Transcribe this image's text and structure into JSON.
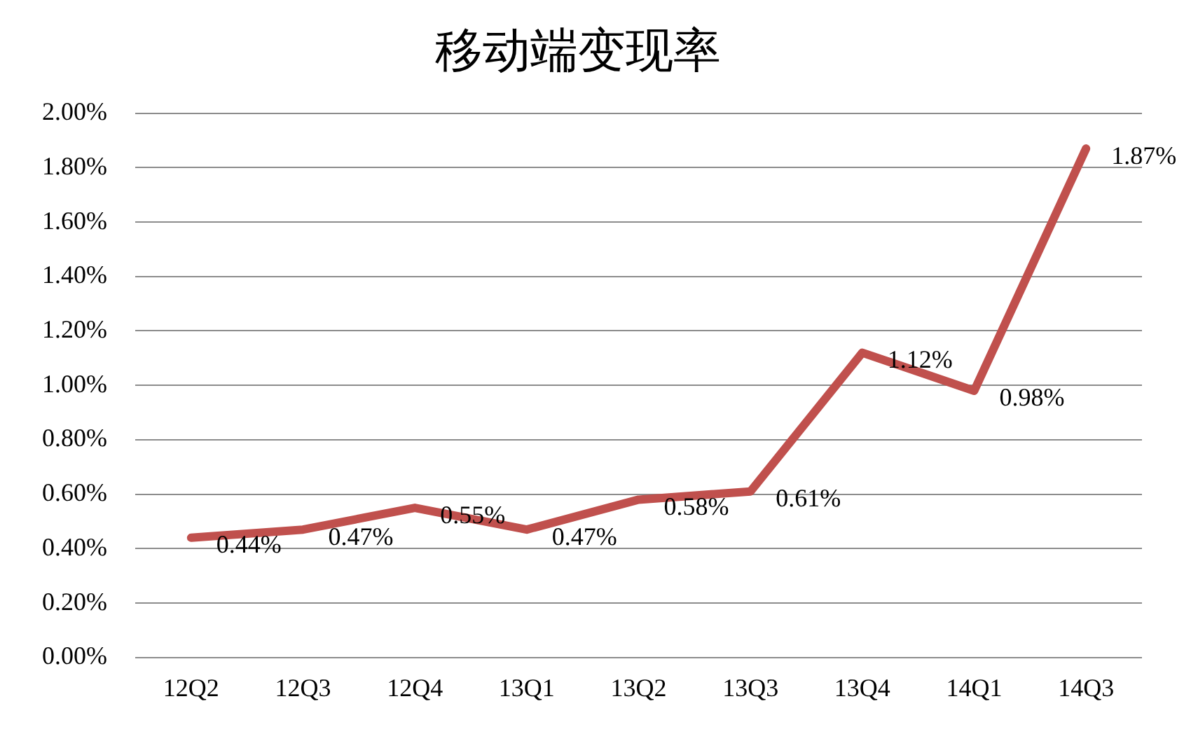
{
  "chart_data": {
    "type": "line",
    "title": "移动端变现率",
    "categories": [
      "12Q2",
      "12Q3",
      "12Q4",
      "13Q1",
      "13Q2",
      "13Q3",
      "13Q4",
      "14Q1",
      "14Q3"
    ],
    "series": [
      {
        "color": "#c0504d",
        "values": [
          0.44,
          0.47,
          0.55,
          0.47,
          0.58,
          0.61,
          1.12,
          0.98,
          1.87
        ],
        "value_labels": [
          "0.44%",
          "0.47%",
          "0.55%",
          "0.47%",
          "0.58%",
          "0.61%",
          "1.12%",
          "0.98%",
          "1.87%"
        ]
      }
    ],
    "ylim": [
      0,
      2
    ],
    "yticks": [
      {
        "value": 0,
        "label": "0.00%"
      },
      {
        "value": 0.2,
        "label": "0.20%"
      },
      {
        "value": 0.4,
        "label": "0.40%"
      },
      {
        "value": 0.6,
        "label": "0.60%"
      },
      {
        "value": 0.8,
        "label": "0.80%"
      },
      {
        "value": 1,
        "label": "1.00%"
      },
      {
        "value": 1.2,
        "label": "1.20%"
      },
      {
        "value": 1.4,
        "label": "1.40%"
      },
      {
        "value": 1.6,
        "label": "1.60%"
      },
      {
        "value": 1.8,
        "label": "1.80%"
      },
      {
        "value": 2,
        "label": "2.00%"
      }
    ],
    "grid": "y",
    "legend": false,
    "marker": "none",
    "line_style": "solid"
  }
}
